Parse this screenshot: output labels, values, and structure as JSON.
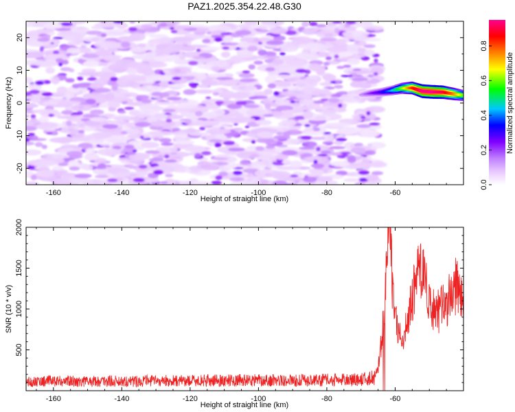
{
  "chart_data": [
    {
      "type": "heatmap",
      "title": "PAZ1.2025.354.22.48.G30",
      "xlabel": "Height of straight line (km)",
      "ylabel": "Frequency (Hz)",
      "xlim": [
        -168,
        -40
      ],
      "ylim": [
        -25,
        25
      ],
      "x_ticks": [
        -160,
        -140,
        -120,
        -100,
        -80,
        -60
      ],
      "y_ticks": [
        -20,
        -10,
        0,
        10,
        20
      ],
      "x_tick_labels": [
        "-160",
        "-140",
        "-120",
        "-100",
        "-80",
        "-60"
      ],
      "y_tick_labels": [
        "-20",
        "-10",
        "0",
        "10",
        "20"
      ],
      "noise_region": {
        "x_range": [
          -168,
          -65
        ],
        "y_range": [
          -25,
          25
        ],
        "typical_amplitude": [
          0.05,
          0.25
        ]
      },
      "signal_track": {
        "x": [
          -70,
          -67,
          -64,
          -61,
          -58,
          -55,
          -52,
          -49,
          -46,
          -43,
          -40
        ],
        "frequency": [
          2.5,
          3.0,
          3.3,
          3.8,
          4.5,
          4.6,
          3.6,
          3.4,
          3.3,
          2.8,
          2.3
        ],
        "amplitude": [
          0.12,
          0.22,
          0.3,
          0.42,
          0.6,
          0.82,
          0.95,
          0.95,
          0.9,
          0.78,
          0.6
        ]
      },
      "colorbar": {
        "label": "Normalized spectral amplitude",
        "range": [
          0.0,
          0.95
        ],
        "ticks": [
          0.0,
          0.2,
          0.4,
          0.6,
          0.8
        ],
        "tick_labels": [
          "0.0",
          "0.2",
          "0.4",
          "0.6",
          "0.8"
        ],
        "colors": [
          "#ffffff",
          "#e8c8ff",
          "#c080ff",
          "#8000ff",
          "#0000ff",
          "#00c8ff",
          "#00ff00",
          "#ffff00",
          "#ff8000",
          "#ff0000",
          "#ff0090"
        ]
      }
    },
    {
      "type": "line",
      "xlabel": "Height of straight line (km)",
      "ylabel": "SNR (10 * v/v)",
      "xlim": [
        -168,
        -40
      ],
      "ylim": [
        0,
        2000
      ],
      "x_ticks": [
        -160,
        -140,
        -120,
        -100,
        -80,
        -60
      ],
      "y_ticks": [
        500,
        1000,
        1500,
        2000
      ],
      "x_tick_labels": [
        "-160",
        "-140",
        "-120",
        "-100",
        "-80",
        "-60"
      ],
      "y_tick_labels": [
        "500",
        "1000",
        "1500",
        "2000"
      ],
      "series": [
        {
          "name": "SNR",
          "color": "#ee2222",
          "x": [
            -168,
            -160,
            -150,
            -140,
            -130,
            -120,
            -110,
            -100,
            -90,
            -80,
            -70,
            -66,
            -65,
            -64,
            -63,
            -62.5,
            -62,
            -61.5,
            -61,
            -60.5,
            -60,
            -59,
            -58,
            -57,
            -56,
            -55,
            -54,
            -53,
            -52,
            -51,
            -50,
            -49,
            -48,
            -47,
            -46,
            -45,
            -44,
            -43,
            -42,
            -41,
            -40
          ],
          "values": [
            110,
            120,
            115,
            118,
            120,
            122,
            125,
            128,
            125,
            130,
            135,
            160,
            280,
            600,
            1100,
            1500,
            2000,
            1850,
            1500,
            1100,
            900,
            700,
            650,
            750,
            900,
            1150,
            1350,
            1520,
            1450,
            1250,
            1050,
            950,
            1050,
            950,
            1050,
            1000,
            1150,
            1200,
            1300,
            1150,
            1050
          ]
        }
      ]
    }
  ]
}
